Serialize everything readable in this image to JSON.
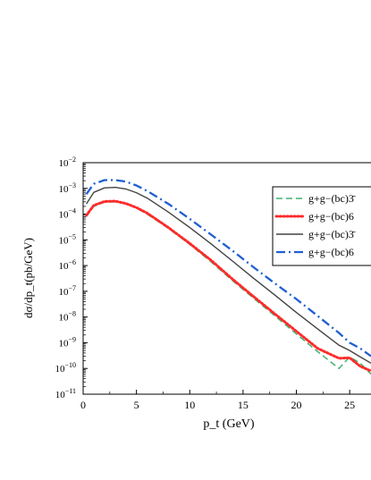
{
  "chart_data": {
    "type": "line",
    "title": "",
    "xlabel": "p_t (GeV)",
    "ylabel": "dσ/dp_t(pb/GeV)",
    "x_scale": "linear",
    "y_scale": "log",
    "xlim": [
      0,
      27
    ],
    "ylim": [
      1e-11,
      0.01
    ],
    "x_ticks": [
      0,
      5,
      10,
      15,
      20,
      25
    ],
    "y_ticks": [
      -11,
      -10,
      -9,
      -8,
      -7,
      -6,
      -5,
      -4,
      -3,
      -2
    ],
    "grid": false,
    "legend_position": "top-right",
    "series": [
      {
        "name": "g+g−(bc)3̄",
        "line_style": "dashed",
        "color": "#3cb371",
        "x": [
          0.3,
          1,
          2,
          3,
          4,
          5,
          6,
          8,
          10,
          12,
          14,
          16,
          18,
          20,
          22,
          24,
          25,
          26,
          27
        ],
        "y": [
          8e-05,
          0.0002,
          0.00029,
          0.0003,
          0.00025,
          0.00017,
          0.0001,
          2.8e-05,
          6.6e-06,
          1.4e-06,
          2.6e-07,
          5.3e-08,
          1.1e-08,
          2.2e-09,
          4.5e-10,
          1e-10,
          2.8e-10,
          1.6e-10,
          6e-11
        ]
      },
      {
        "name": "g+g−(bc)6",
        "line_style": "dotted",
        "color": "#ff2a2a",
        "x": [
          0.3,
          1,
          2,
          3,
          4,
          5,
          6,
          8,
          10,
          12,
          14,
          16,
          18,
          20,
          22,
          24,
          25,
          26,
          27
        ],
        "y": [
          9e-05,
          0.00022,
          0.00031,
          0.00032,
          0.00026,
          0.00018,
          0.00011,
          3e-05,
          7.2e-06,
          1.6e-06,
          3e-07,
          6.2e-08,
          1.3e-08,
          2.8e-09,
          6e-10,
          2.5e-10,
          2.6e-10,
          1.2e-10,
          8e-11
        ]
      },
      {
        "name": "g+g−(bc)3̄",
        "line_style": "solid",
        "color": "#444444",
        "x": [
          0.3,
          1,
          2,
          3,
          4,
          5,
          6,
          8,
          10,
          12,
          14,
          16,
          18,
          20,
          22,
          24,
          25,
          26,
          27
        ],
        "y": [
          0.00025,
          0.0007,
          0.00105,
          0.0011,
          0.00095,
          0.00068,
          0.00042,
          0.00012,
          3e-05,
          7e-06,
          1.5e-06,
          3.2e-07,
          7e-08,
          1.5e-08,
          3.4e-09,
          8e-10,
          5e-10,
          2.8e-10,
          1.6e-10
        ]
      },
      {
        "name": "g+g−(bc)6",
        "line_style": "dashdot",
        "color": "#1f5fd1",
        "x": [
          0.3,
          1,
          2,
          3,
          4,
          5,
          6,
          8,
          10,
          12,
          14,
          16,
          18,
          20,
          22,
          24,
          25,
          26,
          27
        ],
        "y": [
          0.0006,
          0.0015,
          0.0021,
          0.0021,
          0.00185,
          0.0013,
          0.0008,
          0.00025,
          6.5e-05,
          1.6e-05,
          3.8e-06,
          8.5e-07,
          2e-07,
          5e-08,
          1.1e-08,
          2.4e-09,
          1e-09,
          6e-10,
          3e-10
        ]
      }
    ]
  }
}
